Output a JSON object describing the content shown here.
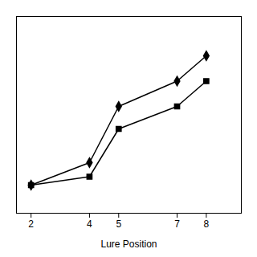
{
  "chart_data": {
    "type": "line",
    "x": [
      2,
      4,
      5,
      7,
      8
    ],
    "series": [
      {
        "color": "#000000",
        "marker": "diamond",
        "values": [
          0.3,
          0.38,
          0.58,
          0.67,
          0.76
        ]
      },
      {
        "color": "#000000",
        "marker": "square",
        "values": [
          0.3,
          0.33,
          0.5,
          0.58,
          0.67
        ]
      }
    ],
    "xlabel": "Lure Position",
    "xlim": [
      1.5,
      9.2
    ],
    "xticks": [
      2,
      4,
      5,
      7,
      8
    ],
    "ylim": [
      0.2,
      0.9
    ],
    "tick_labels": "x",
    "grid": false
  }
}
